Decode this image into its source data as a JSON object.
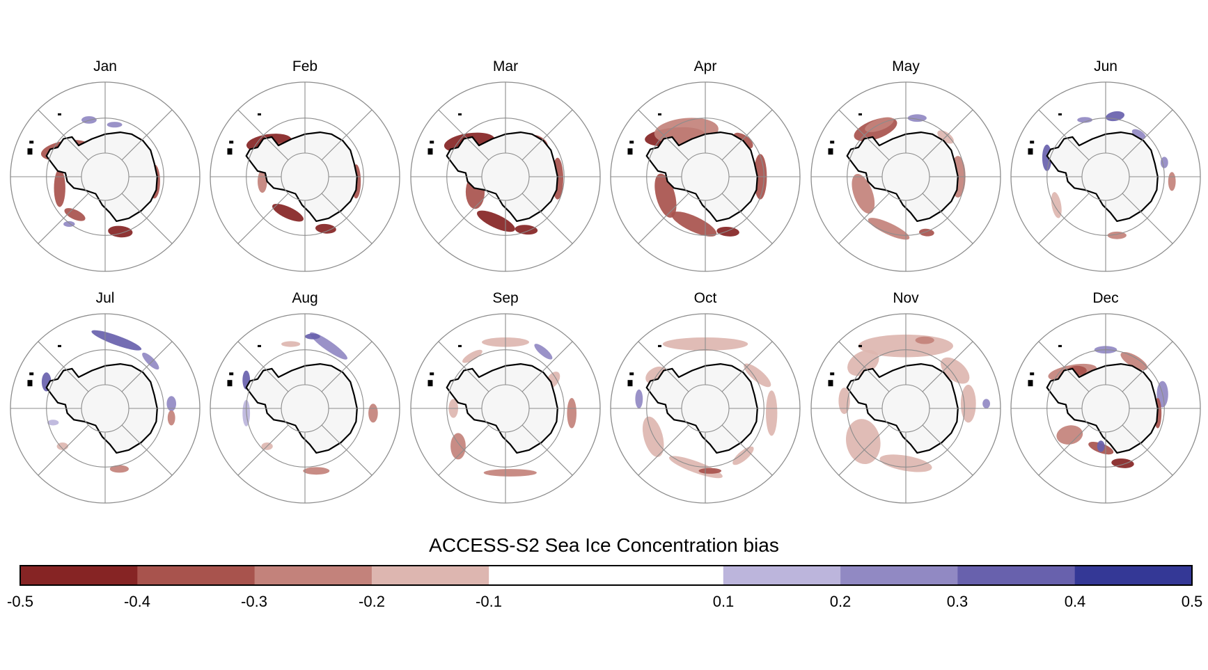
{
  "months": [
    "Jan",
    "Feb",
    "Mar",
    "Apr",
    "May",
    "Jun",
    "Jul",
    "Aug",
    "Sep",
    "Oct",
    "Nov",
    "Dec"
  ],
  "colorbar": {
    "title": "ACCESS-S2 Sea Ice Concentration bias",
    "ticks": [
      "-0.5",
      "-0.4",
      "-0.3",
      "-0.2",
      "-0.1",
      "0.1",
      "0.2",
      "0.3",
      "0.4",
      "0.5"
    ],
    "levels": [
      -0.5,
      -0.4,
      -0.3,
      -0.2,
      -0.1,
      0.1,
      0.2,
      0.3,
      0.4,
      0.5
    ],
    "colors": [
      "#862424",
      "#a8534d",
      "#c3827b",
      "#ddb6b0",
      "#ffffff",
      "#bcb5dc",
      "#9189c3",
      "#6861ad",
      "#343896"
    ]
  },
  "colors": {
    "land": "#f6f6f6",
    "coast": "#000000",
    "grid": "#8c8c8c"
  }
}
